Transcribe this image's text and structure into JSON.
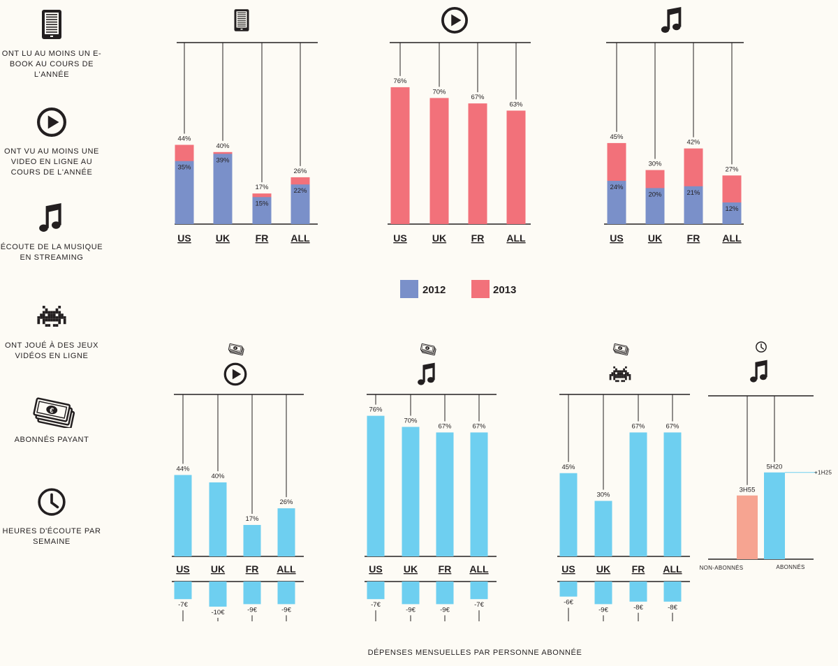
{
  "legend": {
    "items": [
      {
        "icon": "ebook-icon",
        "text": "ONT LU AU MOINS UN E-BOOK AU COURS DE L'ANNÉE"
      },
      {
        "icon": "play-icon",
        "text": "ONT VU AU MOINS UNE VIDEO EN LIGNE AU COURS DE L'ANNÉE"
      },
      {
        "icon": "music-note-icon",
        "text": "ÉCOUTE DE LA MUSIQUE EN STREAMING"
      },
      {
        "icon": "space-invader-icon",
        "text": "ONT JOUÉ À DES JEUX VIDÉOS EN LIGNE"
      },
      {
        "icon": "money-icon",
        "text": "ABONNÉS PAYANT"
      },
      {
        "icon": "clock-icon",
        "text": "HEURES D'ÉCOUTE PAR SEMAINE"
      }
    ]
  },
  "colors": {
    "c2012": "#7a90c9",
    "c2013": "#f2717a",
    "spend": "#6ecff0",
    "nonsub": "#f6a491",
    "bg": "#fdfbf5"
  },
  "key": {
    "label_2012": "2012",
    "label_2013": "2013"
  },
  "footer": "DÉPENSES MENSUELLES PAR PERSONNE ABONNÉE",
  "chart_data": [
    {
      "type": "bar",
      "icon": "ebook-icon",
      "ylim": [
        0,
        100
      ],
      "categories": [
        "US",
        "UK",
        "FR",
        "ALL"
      ],
      "series": [
        {
          "name": "2012",
          "values": [
            35,
            39,
            15,
            22
          ]
        },
        {
          "name": "2013",
          "values": [
            44,
            40,
            17,
            26
          ]
        }
      ]
    },
    {
      "type": "bar",
      "icon": "play-icon",
      "ylim": [
        0,
        100
      ],
      "categories": [
        "US",
        "UK",
        "FR",
        "ALL"
      ],
      "series": [
        {
          "name": "2013",
          "values": [
            76,
            70,
            67,
            63
          ]
        }
      ]
    },
    {
      "type": "bar",
      "icon": "music-note-icon",
      "ylim": [
        0,
        100
      ],
      "categories": [
        "US",
        "UK",
        "FR",
        "ALL"
      ],
      "series": [
        {
          "name": "2012",
          "values": [
            24,
            20,
            21,
            12
          ]
        },
        {
          "name": "2013",
          "values": [
            45,
            30,
            42,
            27
          ]
        }
      ]
    },
    {
      "type": "bar",
      "icon": "play-icon",
      "paid": true,
      "categories": [
        "US",
        "UK",
        "FR",
        "ALL"
      ],
      "values": [
        44,
        40,
        17,
        26
      ],
      "value_labels": [
        "44%",
        "40%",
        "17%",
        "26%"
      ],
      "spending": [
        -7,
        -10,
        -9,
        -9
      ],
      "spending_labels": [
        "-7€",
        "-10€",
        "-9€",
        "-9€"
      ]
    },
    {
      "type": "bar",
      "icon": "music-note-icon",
      "paid": true,
      "categories": [
        "US",
        "UK",
        "FR",
        "ALL"
      ],
      "values": [
        76,
        70,
        67,
        67
      ],
      "value_labels": [
        "76%",
        "70%",
        "67%",
        "67%"
      ],
      "spending": [
        -7,
        -9,
        -9,
        -7
      ],
      "spending_labels": [
        "-7€",
        "-9€",
        "-9€",
        "-7€"
      ]
    },
    {
      "type": "bar",
      "icon": "space-invader-icon",
      "paid": true,
      "categories": [
        "US",
        "UK",
        "FR",
        "ALL"
      ],
      "values": [
        45,
        30,
        67,
        67
      ],
      "value_labels": [
        "45%",
        "30%",
        "67%",
        "67%"
      ],
      "spending": [
        -6,
        -9,
        -8,
        -8
      ],
      "spending_labels": [
        "-6€",
        "-9€",
        "-8€",
        "-8€"
      ]
    },
    {
      "type": "bar",
      "icon": "music-note-icon",
      "icon2": "clock-icon",
      "categories": [
        "NON-ABONNÉS",
        "ABONNÉS"
      ],
      "values": [
        3.9167,
        5.3333
      ],
      "value_labels": [
        "3H55",
        "5H20"
      ],
      "annotation": "+1H25"
    }
  ]
}
